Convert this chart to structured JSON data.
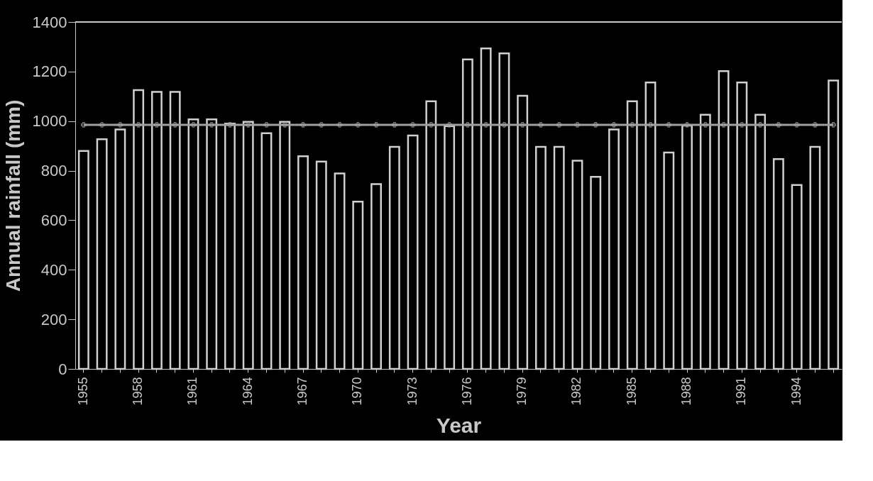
{
  "chart_data": {
    "type": "bar",
    "xlabel": "Year",
    "ylabel": "Annual rainfall (mm)",
    "categories": [
      "1955",
      null,
      null,
      "1958",
      null,
      null,
      "1961",
      null,
      null,
      "1964",
      null,
      null,
      "1967",
      null,
      null,
      "1970",
      null,
      null,
      "1973",
      null,
      null,
      "1976",
      null,
      null,
      "1979",
      null,
      null,
      "1982",
      null,
      null,
      "1985",
      null,
      null,
      "1988",
      null,
      null,
      "1991",
      null,
      null,
      "1994",
      null,
      null
    ],
    "series": [
      {
        "color": "#d0d0d0",
        "values": [
          880,
          927,
          966,
          1125,
          1118,
          1118,
          1007,
          1007,
          990,
          997,
          951,
          997,
          858,
          837,
          789,
          675,
          746,
          896,
          942,
          1080,
          980,
          1249,
          1293,
          1273,
          1102,
          896,
          896,
          840,
          775,
          966,
          1080,
          1156,
          873,
          982,
          1026,
          1202,
          1156,
          1026,
          847,
          742,
          896,
          1164
        ]
      },
      {
        "type": "line",
        "color": "#a0a0a0",
        "marker": "cross",
        "values": [
          985,
          985,
          985,
          985,
          985,
          985,
          985,
          985,
          985,
          985,
          985,
          985,
          985,
          985,
          985,
          985,
          985,
          985,
          985,
          985,
          985,
          985,
          985,
          985,
          985,
          985,
          985,
          985,
          985,
          985,
          985,
          985,
          985,
          985,
          985,
          985,
          985,
          985,
          985,
          985,
          985,
          985
        ]
      }
    ],
    "ylim": [
      0,
      1400
    ],
    "yticks": [
      0,
      200,
      400,
      600,
      800,
      1000,
      1200,
      1400
    ],
    "grid": false
  }
}
